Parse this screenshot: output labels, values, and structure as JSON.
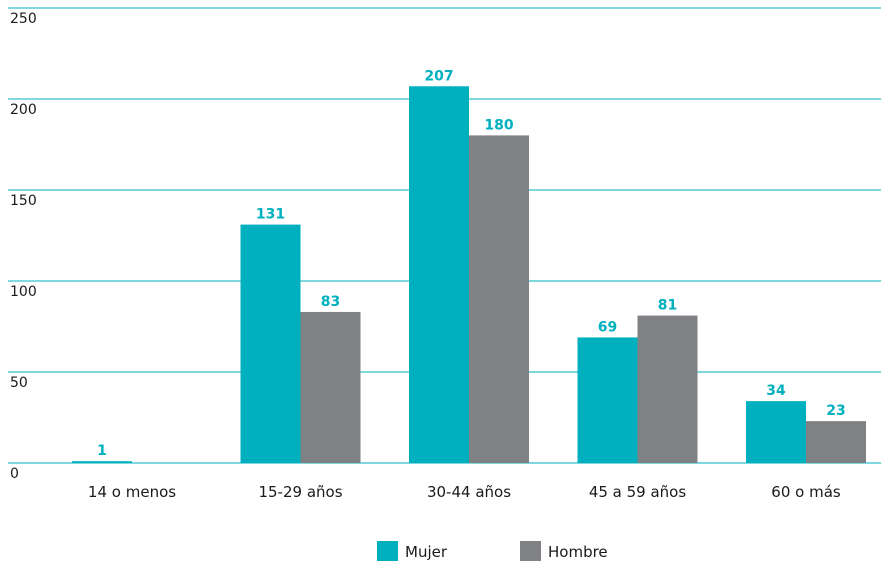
{
  "chart_data": {
    "type": "bar",
    "categories": [
      "14 o menos",
      "15-29 años",
      "30-44 años",
      "45 a 59 años",
      "60 o más"
    ],
    "series": [
      {
        "name": "Mujer",
        "values": [
          1,
          131,
          207,
          69,
          34
        ],
        "color": "#00b0bf"
      },
      {
        "name": "Hombre",
        "values": [
          null,
          83,
          180,
          81,
          23
        ],
        "color": "#808184"
      }
    ],
    "yticks": [
      "0",
      "50",
      "100",
      "150",
      "200",
      "250"
    ],
    "ylim": [
      0,
      250
    ],
    "grid": true,
    "grid_color": "#00b0bf",
    "legend_position": "bottom",
    "title": "",
    "xlabel": "",
    "ylabel": ""
  }
}
